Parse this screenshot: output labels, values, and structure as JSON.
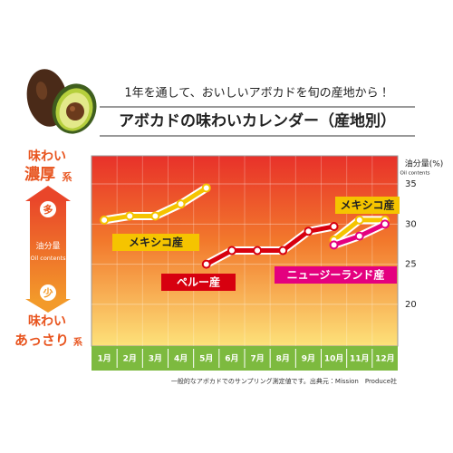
{
  "header": {
    "title": "1年を通して、おいしいアボカドを旬の産地から！",
    "subtitle": "アボカドの味わいカレンダー（産地別）"
  },
  "left_scale": {
    "rich_top": "味わい",
    "rich_main": "濃厚",
    "rich_suffix": "系",
    "high": "多",
    "axis_label": "油分量",
    "axis_sublabel": "Oil contents",
    "low": "少",
    "light_top": "味わい",
    "light_main": "あっさり",
    "light_suffix": "系"
  },
  "chart_data": {
    "type": "line",
    "y_axis_label": "油分量(%)",
    "y_axis_sublabel": "Oil contents",
    "categories": [
      "1月",
      "2月",
      "3月",
      "4月",
      "5月",
      "6月",
      "7月",
      "8月",
      "9月",
      "10月",
      "11月",
      "12月"
    ],
    "ylim": [
      14.8,
      38.5
    ],
    "yticks": [
      20,
      25,
      30,
      35
    ],
    "grid": true,
    "series": [
      {
        "name": "メキシコ産",
        "color": "#f5c400",
        "values": [
          30.5,
          31,
          31,
          32.5,
          34.5,
          null,
          null,
          null,
          null,
          28,
          30.5,
          30.5
        ]
      },
      {
        "name": "ペルー産",
        "color": "#d7000f",
        "values": [
          null,
          null,
          null,
          null,
          25,
          26.7,
          26.7,
          26.7,
          29.1,
          29.7,
          null,
          null
        ]
      },
      {
        "name": "ニュージーランド産",
        "color": "#e4007f",
        "values": [
          null,
          null,
          null,
          null,
          null,
          null,
          null,
          null,
          null,
          27.4,
          28.5,
          30
        ]
      }
    ]
  },
  "footnote": "一般的なアボカドでのサンプリング測定値です。出典元：Mission　Produce社"
}
